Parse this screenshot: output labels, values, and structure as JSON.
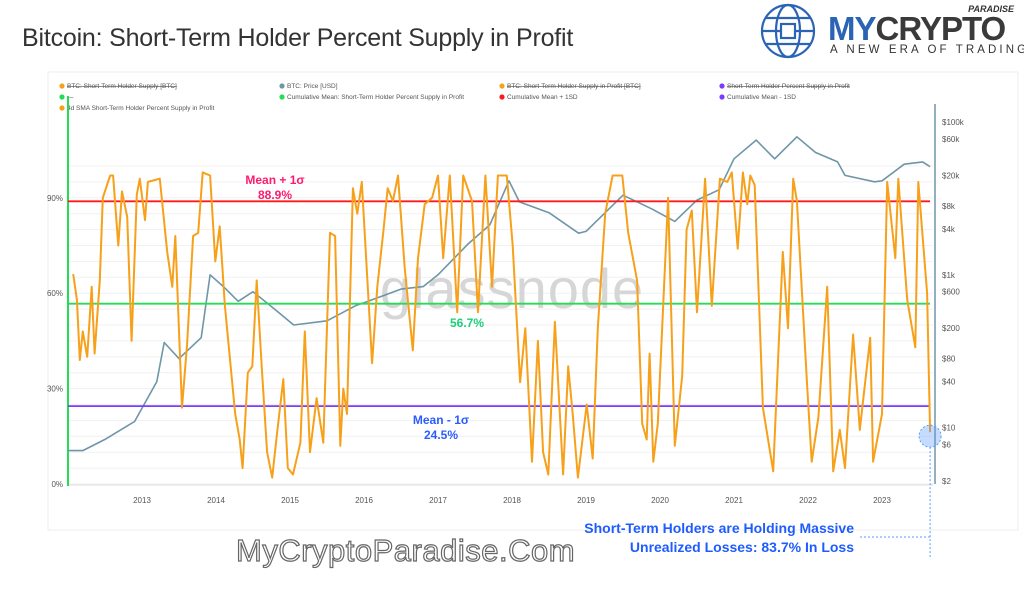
{
  "title": "Bitcoin: Short-Term Holder Percent Supply in Profit",
  "logo": {
    "brand_a": "MY",
    "brand_b": "CRYPTO",
    "sup": "PARADISE",
    "tagline": "A NEW ERA OF TRADING"
  },
  "watermark": "glassnode",
  "footer": "MyCryptoParadise.Com",
  "annotation": {
    "line1": "Short-Term Holders are Holding Massive",
    "line2": "Unrealized Losses: 83.7% In Loss"
  },
  "chart_data": {
    "type": "line",
    "title": "Bitcoin: Short-Term Holder Percent Supply in Profit",
    "legend": [
      {
        "label": "BTC: Short-Term Holder Supply [BTC]",
        "color": "#f7a01a",
        "hidden": true
      },
      {
        "label": "BTC: Price [USD]",
        "color": "#6e96a8",
        "hidden": false
      },
      {
        "label": "BTC: Short-Term Holder Supply in Profit [BTC]",
        "color": "#f7a01a",
        "hidden": true
      },
      {
        "label": "Short-Term Holder Percent Supply in Profit",
        "color": "#7a3cff",
        "hidden": true
      },
      {
        "label": "—",
        "color": "#22dd55",
        "hidden": false
      },
      {
        "label": "Cumulative Mean: Short-Term Holder Percent Supply in Profit",
        "color": "#22dd55",
        "hidden": false
      },
      {
        "label": "Cumulative Mean + 1SD",
        "color": "#ff1a1a",
        "hidden": false
      },
      {
        "label": "Cumulative Mean - 1SD",
        "color": "#7a3cff",
        "hidden": false
      },
      {
        "label": "4d SMA Short-Term Holder Percent Supply in Profit",
        "color": "#f7a01a",
        "hidden": false
      }
    ],
    "legend_position": "top",
    "x_ticks": [
      "2013",
      "2014",
      "2015",
      "2016",
      "2017",
      "2018",
      "2019",
      "2020",
      "2021",
      "2022",
      "2023"
    ],
    "xlim": [
      2012.0,
      2023.7
    ],
    "y_left": {
      "ticks": [
        "0%",
        "30%",
        "60%",
        "90%"
      ],
      "tick_values": [
        0,
        30,
        60,
        90
      ],
      "ylim": [
        0,
        100
      ]
    },
    "y_right": {
      "scale": "log",
      "ticks": [
        "$100k",
        "$60k",
        "$20k",
        "$8k",
        "$4k",
        "$1k",
        "$600",
        "$200",
        "$80",
        "$40",
        "$10",
        "$6",
        "$2"
      ],
      "tick_values": [
        100000,
        60000,
        20000,
        8000,
        4000,
        1000,
        600,
        200,
        80,
        40,
        10,
        6,
        2
      ]
    },
    "grid": true,
    "reference_lines": [
      {
        "name": "Cumulative Mean + 1SD",
        "value": 88.9,
        "color": "#ff1a1a",
        "label": "Mean + 1σ",
        "value_label": "88.9%",
        "label_color": "#ff1a6e"
      },
      {
        "name": "Cumulative Mean",
        "value": 56.7,
        "color": "#22dd55",
        "label": "",
        "value_label": "56.7%",
        "label_color": "#18d07a"
      },
      {
        "name": "Cumulative Mean - 1SD",
        "value": 24.5,
        "color": "#7a3cff",
        "label": "Mean - 1σ",
        "value_label": "24.5%",
        "label_color": "#2b5cff"
      }
    ],
    "series": [
      {
        "name": "4d SMA Short-Term Holder Percent Supply in Profit",
        "color": "#f7a01a",
        "axis": "left",
        "points": [
          [
            2012.07,
            66
          ],
          [
            2012.12,
            58
          ],
          [
            2012.16,
            39
          ],
          [
            2012.2,
            48
          ],
          [
            2012.26,
            40
          ],
          [
            2012.32,
            62
          ],
          [
            2012.36,
            41
          ],
          [
            2012.43,
            64
          ],
          [
            2012.47,
            90
          ],
          [
            2012.57,
            97
          ],
          [
            2012.61,
            97
          ],
          [
            2012.68,
            75
          ],
          [
            2012.73,
            92
          ],
          [
            2012.8,
            84
          ],
          [
            2012.86,
            45
          ],
          [
            2012.93,
            91
          ],
          [
            2012.97,
            96
          ],
          [
            2013.04,
            83
          ],
          [
            2013.08,
            95
          ],
          [
            2013.24,
            96
          ],
          [
            2013.34,
            73
          ],
          [
            2013.41,
            62
          ],
          [
            2013.45,
            78
          ],
          [
            2013.54,
            24
          ],
          [
            2013.61,
            44
          ],
          [
            2013.69,
            78
          ],
          [
            2013.76,
            79
          ],
          [
            2013.82,
            98
          ],
          [
            2013.92,
            97
          ],
          [
            2013.99,
            70
          ],
          [
            2014.05,
            81
          ],
          [
            2014.12,
            56
          ],
          [
            2014.26,
            22
          ],
          [
            2014.32,
            14
          ],
          [
            2014.36,
            5
          ],
          [
            2014.43,
            35
          ],
          [
            2014.49,
            37
          ],
          [
            2014.55,
            64
          ],
          [
            2014.62,
            36
          ],
          [
            2014.69,
            10
          ],
          [
            2014.76,
            2
          ],
          [
            2014.82,
            15
          ],
          [
            2014.91,
            33
          ],
          [
            2014.97,
            5
          ],
          [
            2015.04,
            3
          ],
          [
            2015.14,
            13
          ],
          [
            2015.2,
            48
          ],
          [
            2015.27,
            10
          ],
          [
            2015.36,
            27
          ],
          [
            2015.45,
            13
          ],
          [
            2015.54,
            79
          ],
          [
            2015.61,
            78
          ],
          [
            2015.68,
            12
          ],
          [
            2015.72,
            30
          ],
          [
            2015.77,
            22
          ],
          [
            2015.85,
            93
          ],
          [
            2015.91,
            85
          ],
          [
            2015.97,
            95
          ],
          [
            2016.11,
            38
          ],
          [
            2016.18,
            62
          ],
          [
            2016.26,
            79
          ],
          [
            2016.32,
            93
          ],
          [
            2016.39,
            89
          ],
          [
            2016.46,
            97
          ],
          [
            2016.55,
            68
          ],
          [
            2016.66,
            42
          ],
          [
            2016.73,
            71
          ],
          [
            2016.82,
            88
          ],
          [
            2016.92,
            90
          ],
          [
            2017.0,
            97
          ],
          [
            2017.07,
            71
          ],
          [
            2017.16,
            97
          ],
          [
            2017.26,
            54
          ],
          [
            2017.34,
            97
          ],
          [
            2017.46,
            89
          ],
          [
            2017.54,
            54
          ],
          [
            2017.64,
            97
          ],
          [
            2017.73,
            62
          ],
          [
            2017.81,
            97
          ],
          [
            2017.93,
            97
          ],
          [
            2018.01,
            75
          ],
          [
            2018.11,
            32
          ],
          [
            2018.18,
            49
          ],
          [
            2018.27,
            7
          ],
          [
            2018.35,
            45
          ],
          [
            2018.42,
            10
          ],
          [
            2018.49,
            3
          ],
          [
            2018.58,
            51
          ],
          [
            2018.69,
            3
          ],
          [
            2018.76,
            37
          ],
          [
            2018.82,
            22
          ],
          [
            2018.89,
            2
          ],
          [
            2019.01,
            25
          ],
          [
            2019.09,
            8
          ],
          [
            2019.16,
            49
          ],
          [
            2019.26,
            85
          ],
          [
            2019.36,
            97
          ],
          [
            2019.49,
            97
          ],
          [
            2019.57,
            79
          ],
          [
            2019.69,
            64
          ],
          [
            2019.76,
            19
          ],
          [
            2019.82,
            14
          ],
          [
            2019.86,
            41
          ],
          [
            2019.91,
            7
          ],
          [
            2019.97,
            19
          ],
          [
            2020.11,
            90
          ],
          [
            2020.2,
            12
          ],
          [
            2020.3,
            34
          ],
          [
            2020.36,
            80
          ],
          [
            2020.43,
            86
          ],
          [
            2020.5,
            54
          ],
          [
            2020.61,
            96
          ],
          [
            2020.7,
            56
          ],
          [
            2020.81,
            96
          ],
          [
            2020.91,
            95
          ],
          [
            2020.97,
            98
          ],
          [
            2021.05,
            74
          ],
          [
            2021.12,
            98
          ],
          [
            2021.18,
            88
          ],
          [
            2021.22,
            97
          ],
          [
            2021.28,
            94
          ],
          [
            2021.39,
            24
          ],
          [
            2021.53,
            4
          ],
          [
            2021.66,
            73
          ],
          [
            2021.73,
            49
          ],
          [
            2021.8,
            96
          ],
          [
            2021.85,
            89
          ],
          [
            2021.99,
            30
          ],
          [
            2022.05,
            7
          ],
          [
            2022.14,
            21
          ],
          [
            2022.26,
            62
          ],
          [
            2022.34,
            4
          ],
          [
            2022.43,
            17
          ],
          [
            2022.5,
            5
          ],
          [
            2022.61,
            47
          ],
          [
            2022.7,
            17
          ],
          [
            2022.84,
            46
          ],
          [
            2022.88,
            7
          ],
          [
            2023.0,
            22
          ],
          [
            2023.07,
            95
          ],
          [
            2023.18,
            71
          ],
          [
            2023.22,
            96
          ],
          [
            2023.34,
            58
          ],
          [
            2023.45,
            43
          ],
          [
            2023.49,
            95
          ],
          [
            2023.61,
            60
          ],
          [
            2023.65,
            16.3
          ]
        ]
      },
      {
        "name": "BTC: Price [USD]",
        "color": "#6e96a8",
        "axis": "right",
        "points": [
          [
            2012.0,
            5
          ],
          [
            2012.2,
            5
          ],
          [
            2012.5,
            7
          ],
          [
            2012.9,
            12
          ],
          [
            2013.2,
            40
          ],
          [
            2013.3,
            130
          ],
          [
            2013.5,
            80
          ],
          [
            2013.8,
            150
          ],
          [
            2013.92,
            1000
          ],
          [
            2014.1,
            700
          ],
          [
            2014.3,
            450
          ],
          [
            2014.5,
            600
          ],
          [
            2014.8,
            350
          ],
          [
            2015.05,
            220
          ],
          [
            2015.5,
            250
          ],
          [
            2015.9,
            400
          ],
          [
            2016.0,
            430
          ],
          [
            2016.5,
            650
          ],
          [
            2016.8,
            700
          ],
          [
            2017.0,
            1000
          ],
          [
            2017.4,
            2500
          ],
          [
            2017.7,
            4500
          ],
          [
            2017.96,
            17000
          ],
          [
            2018.1,
            9000
          ],
          [
            2018.5,
            6500
          ],
          [
            2018.9,
            3500
          ],
          [
            2019.0,
            3700
          ],
          [
            2019.5,
            11000
          ],
          [
            2019.9,
            7200
          ],
          [
            2020.2,
            5000
          ],
          [
            2020.5,
            9500
          ],
          [
            2020.8,
            13000
          ],
          [
            2021.0,
            33000
          ],
          [
            2021.3,
            58000
          ],
          [
            2021.55,
            33000
          ],
          [
            2021.85,
            64000
          ],
          [
            2022.1,
            40000
          ],
          [
            2022.4,
            30000
          ],
          [
            2022.5,
            20000
          ],
          [
            2022.9,
            16500
          ],
          [
            2023.0,
            17000
          ],
          [
            2023.3,
            28000
          ],
          [
            2023.55,
            30000
          ],
          [
            2023.65,
            26000
          ]
        ]
      }
    ],
    "highlight": {
      "value": 16.3,
      "color": "#5b9bff"
    }
  }
}
